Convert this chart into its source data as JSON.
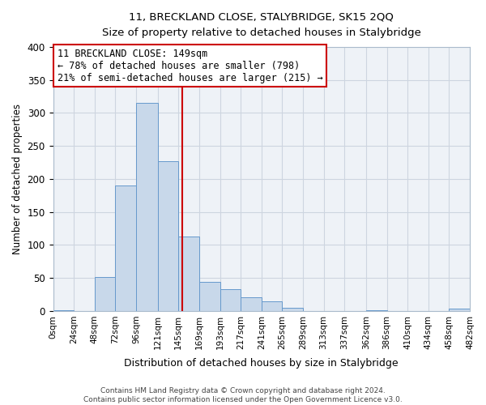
{
  "title_line1": "11, BRECKLAND CLOSE, STALYBRIDGE, SK15 2QQ",
  "title_line2": "Size of property relative to detached houses in Stalybridge",
  "xlabel": "Distribution of detached houses by size in Stalybridge",
  "ylabel": "Number of detached properties",
  "bar_color": "#c8d8ea",
  "bar_edge_color": "#6699cc",
  "bin_edges": [
    0,
    24,
    48,
    72,
    96,
    121,
    145,
    169,
    193,
    217,
    241,
    265,
    289,
    313,
    337,
    362,
    386,
    410,
    434,
    458,
    482
  ],
  "bin_labels": [
    "0sqm",
    "24sqm",
    "48sqm",
    "72sqm",
    "96sqm",
    "121sqm",
    "145sqm",
    "169sqm",
    "193sqm",
    "217sqm",
    "241sqm",
    "265sqm",
    "289sqm",
    "313sqm",
    "337sqm",
    "362sqm",
    "386sqm",
    "410sqm",
    "434sqm",
    "458sqm",
    "482sqm"
  ],
  "counts": [
    1,
    0,
    52,
    190,
    315,
    227,
    113,
    44,
    33,
    21,
    15,
    5,
    0,
    0,
    0,
    1,
    0,
    0,
    0,
    3
  ],
  "property_size": 149,
  "vline_color": "#cc0000",
  "annotation_text_line1": "11 BRECKLAND CLOSE: 149sqm",
  "annotation_text_line2": "← 78% of detached houses are smaller (798)",
  "annotation_text_line3": "21% of semi-detached houses are larger (215) →",
  "annotation_box_facecolor": "#ffffff",
  "annotation_box_edgecolor": "#cc0000",
  "ylim": [
    0,
    400
  ],
  "yticks": [
    0,
    50,
    100,
    150,
    200,
    250,
    300,
    350,
    400
  ],
  "footer_line1": "Contains HM Land Registry data © Crown copyright and database right 2024.",
  "footer_line2": "Contains public sector information licensed under the Open Government Licence v3.0.",
  "background_color": "#eef2f7",
  "grid_color": "#cdd5e0",
  "spine_color": "#aabbcc"
}
